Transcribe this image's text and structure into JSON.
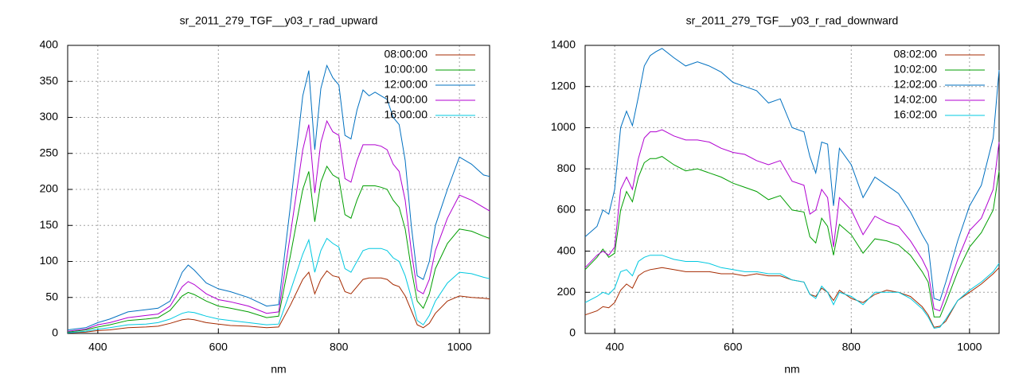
{
  "chart_data": [
    {
      "type": "line",
      "title": "sr_2011_279_TGF__y03_r_rad_upward",
      "xlabel": "nm",
      "x": [
        350,
        380,
        400,
        420,
        450,
        480,
        500,
        520,
        540,
        550,
        560,
        580,
        600,
        620,
        650,
        680,
        700,
        720,
        740,
        750,
        760,
        770,
        780,
        790,
        800,
        810,
        820,
        830,
        840,
        850,
        860,
        870,
        880,
        890,
        900,
        910,
        920,
        930,
        940,
        950,
        960,
        980,
        1000,
        1020,
        1040,
        1050
      ],
      "xlim": [
        350,
        1050
      ],
      "xticks": [
        400,
        600,
        800,
        1000
      ],
      "ylim": [
        0,
        400
      ],
      "yticks": [
        0,
        50,
        100,
        150,
        200,
        250,
        300,
        350,
        400
      ],
      "grid": true,
      "legend": "top right",
      "series": [
        {
          "name": "08:00:00",
          "color": "#a52a00",
          "values": [
            1,
            2,
            4,
            5,
            8,
            9,
            10,
            14,
            19,
            20,
            19,
            15,
            13,
            11,
            10,
            8,
            9,
            40,
            75,
            85,
            55,
            75,
            87,
            80,
            78,
            58,
            55,
            65,
            75,
            77,
            77,
            77,
            75,
            68,
            65,
            52,
            32,
            12,
            8,
            14,
            28,
            45,
            52,
            50,
            49,
            48
          ]
        },
        {
          "name": "10:00:00",
          "color": "#009e00",
          "values": [
            2,
            5,
            9,
            12,
            18,
            20,
            22,
            32,
            52,
            57,
            54,
            45,
            38,
            35,
            30,
            22,
            24,
            110,
            200,
            225,
            155,
            210,
            232,
            220,
            215,
            165,
            160,
            185,
            205,
            205,
            205,
            203,
            200,
            185,
            175,
            145,
            90,
            45,
            35,
            55,
            90,
            125,
            145,
            142,
            135,
            132
          ]
        },
        {
          "name": "12:00:00",
          "color": "#0070c0",
          "values": [
            5,
            8,
            15,
            20,
            30,
            33,
            35,
            45,
            85,
            95,
            88,
            70,
            62,
            58,
            50,
            38,
            40,
            180,
            330,
            365,
            255,
            340,
            372,
            355,
            345,
            275,
            270,
            310,
            338,
            330,
            335,
            330,
            325,
            300,
            290,
            240,
            150,
            80,
            75,
            100,
            150,
            200,
            245,
            235,
            220,
            218
          ]
        },
        {
          "name": "14:00:00",
          "color": "#b000d0",
          "values": [
            3,
            6,
            12,
            15,
            22,
            25,
            27,
            38,
            65,
            72,
            68,
            55,
            47,
            44,
            38,
            28,
            30,
            140,
            255,
            290,
            195,
            265,
            295,
            280,
            275,
            215,
            210,
            240,
            262,
            262,
            262,
            260,
            255,
            235,
            225,
            185,
            115,
            60,
            55,
            75,
            115,
            160,
            192,
            185,
            175,
            170
          ]
        },
        {
          "name": "16:00:00",
          "color": "#00c8e0",
          "values": [
            1,
            3,
            6,
            8,
            12,
            13,
            15,
            20,
            28,
            30,
            29,
            24,
            20,
            18,
            15,
            12,
            13,
            60,
            110,
            130,
            85,
            115,
            132,
            125,
            120,
            90,
            85,
            100,
            115,
            118,
            118,
            118,
            115,
            105,
            100,
            80,
            50,
            18,
            12,
            25,
            45,
            70,
            85,
            83,
            78,
            76
          ]
        }
      ]
    },
    {
      "type": "line",
      "title": "sr_2011_279_TGF__y03_r_rad_downward",
      "xlabel": "nm",
      "x": [
        350,
        370,
        380,
        390,
        400,
        410,
        420,
        430,
        440,
        450,
        460,
        470,
        480,
        500,
        520,
        540,
        560,
        580,
        600,
        620,
        640,
        660,
        680,
        700,
        720,
        730,
        740,
        750,
        760,
        770,
        780,
        800,
        820,
        840,
        860,
        880,
        900,
        920,
        930,
        940,
        950,
        960,
        980,
        1000,
        1020,
        1040,
        1050
      ],
      "xlim": [
        350,
        1050
      ],
      "xticks": [
        400,
        600,
        800,
        1000
      ],
      "ylim": [
        0,
        1400
      ],
      "yticks": [
        0,
        200,
        400,
        600,
        800,
        1000,
        1200,
        1400
      ],
      "grid": true,
      "legend": "top right",
      "series": [
        {
          "name": "08:02:00",
          "color": "#a52a00",
          "values": [
            90,
            110,
            130,
            125,
            150,
            210,
            240,
            220,
            280,
            300,
            310,
            315,
            320,
            310,
            300,
            300,
            300,
            290,
            290,
            280,
            290,
            280,
            280,
            260,
            250,
            190,
            180,
            220,
            200,
            160,
            210,
            170,
            150,
            190,
            210,
            200,
            180,
            130,
            90,
            30,
            35,
            60,
            160,
            200,
            240,
            290,
            320
          ]
        },
        {
          "name": "10:02:00",
          "color": "#009e00",
          "values": [
            310,
            370,
            410,
            370,
            390,
            600,
            690,
            640,
            760,
            830,
            850,
            850,
            860,
            820,
            790,
            800,
            780,
            760,
            730,
            710,
            690,
            650,
            670,
            600,
            590,
            470,
            440,
            560,
            520,
            380,
            530,
            480,
            390,
            460,
            450,
            430,
            380,
            300,
            250,
            80,
            80,
            150,
            300,
            420,
            490,
            600,
            790
          ]
        },
        {
          "name": "12:02:00",
          "color": "#0070c0",
          "values": [
            470,
            520,
            600,
            580,
            700,
            1000,
            1080,
            1010,
            1150,
            1300,
            1350,
            1370,
            1385,
            1340,
            1300,
            1320,
            1300,
            1270,
            1220,
            1200,
            1180,
            1120,
            1140,
            1000,
            980,
            860,
            780,
            930,
            920,
            620,
            900,
            820,
            660,
            760,
            720,
            680,
            590,
            480,
            430,
            170,
            160,
            250,
            450,
            620,
            720,
            950,
            1280
          ]
        },
        {
          "name": "14:02:00",
          "color": "#b000d0",
          "values": [
            320,
            380,
            400,
            380,
            420,
            700,
            760,
            700,
            850,
            950,
            980,
            980,
            990,
            960,
            940,
            940,
            930,
            900,
            880,
            870,
            840,
            820,
            840,
            740,
            720,
            580,
            600,
            700,
            660,
            420,
            660,
            600,
            480,
            570,
            540,
            520,
            450,
            360,
            300,
            120,
            110,
            190,
            360,
            500,
            560,
            700,
            930
          ]
        },
        {
          "name": "16:02:00",
          "color": "#00c8e0",
          "values": [
            150,
            180,
            200,
            190,
            220,
            300,
            310,
            280,
            350,
            370,
            380,
            380,
            380,
            360,
            350,
            350,
            340,
            320,
            310,
            300,
            300,
            290,
            290,
            260,
            250,
            190,
            170,
            230,
            200,
            140,
            200,
            180,
            140,
            200,
            200,
            200,
            170,
            120,
            80,
            25,
            30,
            70,
            160,
            210,
            250,
            300,
            340
          ]
        }
      ]
    }
  ]
}
